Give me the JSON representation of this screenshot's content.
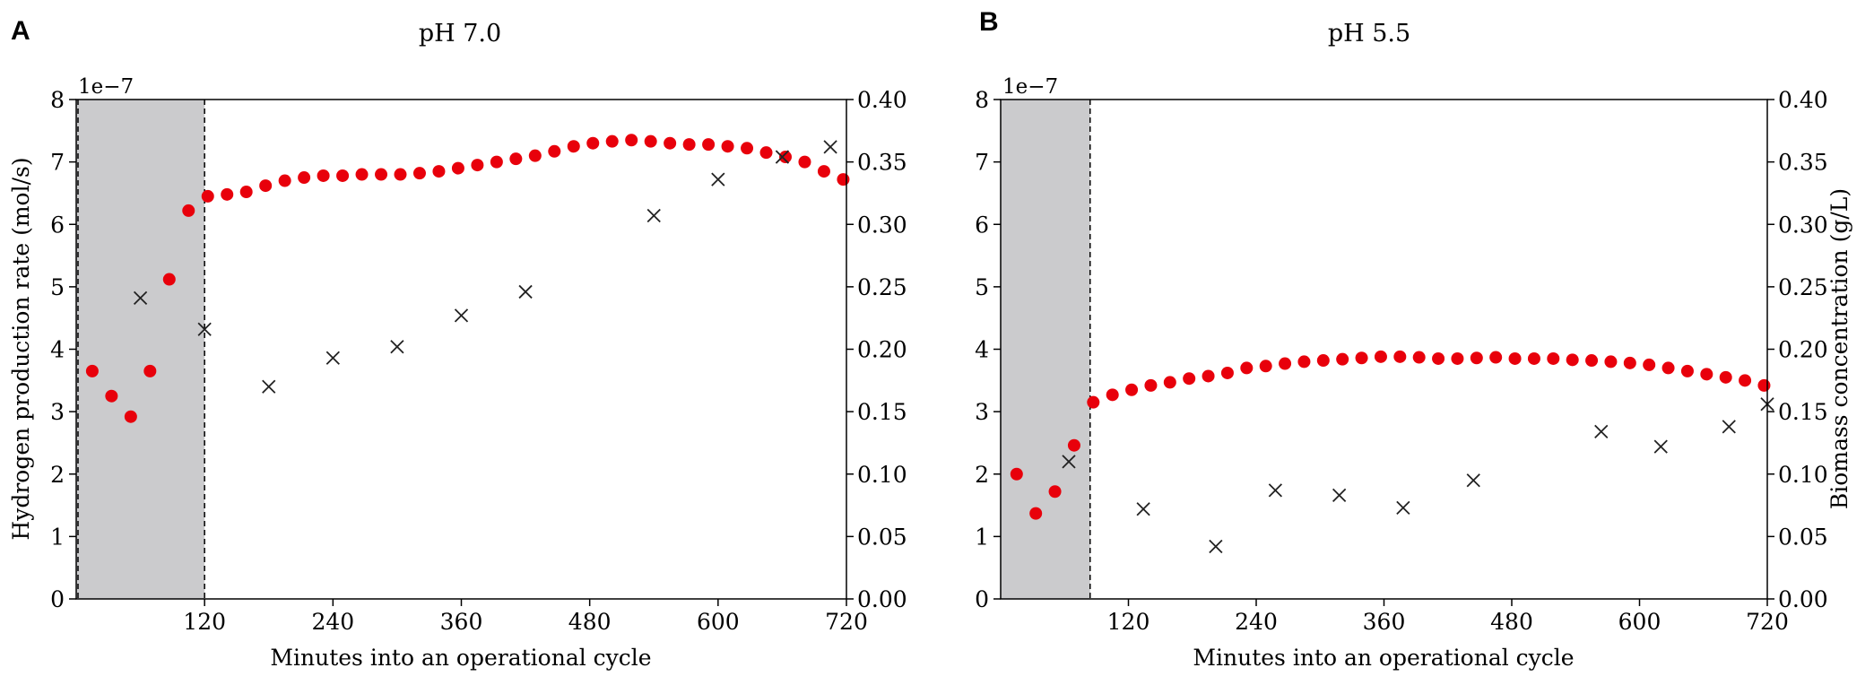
{
  "chart_data": [
    {
      "panel_label": "A",
      "type": "scatter",
      "title": "pH 7.0",
      "xlabel": "Minutes into an operational cycle",
      "ylabel_left": "Hydrogen production rate (mol/s)",
      "ylabel_right": "",
      "y_scale_label": "1e−7",
      "xlim": [
        0,
        720
      ],
      "xticks": [
        120,
        240,
        360,
        480,
        600,
        720
      ],
      "xtick_labels": [
        "120",
        "240",
        "360",
        "480",
        "600",
        "720"
      ],
      "ylim_left": [
        0,
        8
      ],
      "yticks_left": [
        0,
        1,
        2,
        3,
        4,
        5,
        6,
        7,
        8
      ],
      "ytick_labels_left": [
        "0",
        "1",
        "2",
        "3",
        "4",
        "5",
        "6",
        "7",
        "8"
      ],
      "ylim_right": [
        0,
        0.4
      ],
      "yticks_right": [
        0,
        0.05,
        0.1,
        0.15,
        0.2,
        0.25,
        0.3,
        0.35,
        0.4
      ],
      "ytick_labels_right": [
        "0.00",
        "0.05",
        "0.10",
        "0.15",
        "0.20",
        "0.25",
        "0.30",
        "0.35",
        "0.40"
      ],
      "shaded_region": [
        0,
        120
      ],
      "series": [
        {
          "name": "Hydrogen production rate",
          "axis": "left",
          "marker": "circle",
          "color": "#e8000b",
          "x": [
            15,
            33,
            51,
            69,
            87,
            105,
            123,
            141,
            159,
            177,
            195,
            213,
            231,
            249,
            267,
            285,
            303,
            321,
            339,
            357,
            375,
            393,
            411,
            429,
            447,
            465,
            483,
            501,
            519,
            537,
            555,
            573,
            591,
            609,
            627,
            645,
            663,
            681,
            699,
            717
          ],
          "y": [
            3.65,
            3.25,
            2.92,
            3.65,
            5.12,
            6.22,
            6.45,
            6.48,
            6.52,
            6.62,
            6.7,
            6.75,
            6.78,
            6.78,
            6.8,
            6.8,
            6.8,
            6.82,
            6.85,
            6.9,
            6.95,
            7.0,
            7.05,
            7.1,
            7.17,
            7.25,
            7.3,
            7.33,
            7.35,
            7.33,
            7.3,
            7.28,
            7.28,
            7.25,
            7.22,
            7.15,
            7.08,
            7.0,
            6.85,
            6.72
          ]
        },
        {
          "name": "Biomass concentration",
          "axis": "right",
          "marker": "x",
          "color": "#222222",
          "x": [
            60,
            120,
            180,
            240,
            300,
            360,
            420,
            540,
            600,
            660,
            705
          ],
          "y": [
            0.241,
            0.216,
            0.17,
            0.193,
            0.202,
            0.227,
            0.246,
            0.307,
            0.336,
            0.354,
            0.362
          ]
        }
      ]
    },
    {
      "panel_label": "B",
      "type": "scatter",
      "title": "pH 5.5",
      "xlabel": "Minutes into an operational cycle",
      "ylabel_left": "",
      "ylabel_right": "Biomass concentration (g/L)",
      "y_scale_label": "1e−7",
      "xlim": [
        0,
        720
      ],
      "xticks": [
        120,
        240,
        360,
        480,
        600,
        720
      ],
      "xtick_labels": [
        "120",
        "240",
        "360",
        "480",
        "600",
        "720"
      ],
      "ylim_left": [
        0,
        8
      ],
      "yticks_left": [
        0,
        1,
        2,
        3,
        4,
        5,
        6,
        7,
        8
      ],
      "ytick_labels_left": [
        "0",
        "1",
        "2",
        "3",
        "4",
        "5",
        "6",
        "7",
        "8"
      ],
      "ylim_right": [
        0,
        0.4
      ],
      "yticks_right": [
        0,
        0.05,
        0.1,
        0.15,
        0.2,
        0.25,
        0.3,
        0.35,
        0.4
      ],
      "ytick_labels_right": [
        "0.00",
        "0.05",
        "0.10",
        "0.15",
        "0.20",
        "0.25",
        "0.30",
        "0.35",
        "0.40"
      ],
      "shaded_region": [
        0,
        84
      ],
      "series": [
        {
          "name": "Hydrogen production rate",
          "axis": "left",
          "marker": "circle",
          "color": "#e8000b",
          "x": [
            15,
            33,
            51,
            69,
            87,
            105,
            123,
            141,
            159,
            177,
            195,
            213,
            231,
            249,
            267,
            285,
            303,
            321,
            339,
            357,
            375,
            393,
            411,
            429,
            447,
            465,
            483,
            501,
            519,
            537,
            555,
            573,
            591,
            609,
            627,
            645,
            663,
            681,
            699,
            717
          ],
          "y": [
            2.0,
            1.37,
            1.72,
            2.46,
            3.15,
            3.27,
            3.35,
            3.42,
            3.47,
            3.53,
            3.57,
            3.62,
            3.7,
            3.73,
            3.77,
            3.8,
            3.82,
            3.84,
            3.86,
            3.88,
            3.88,
            3.87,
            3.85,
            3.85,
            3.86,
            3.87,
            3.85,
            3.85,
            3.85,
            3.83,
            3.82,
            3.8,
            3.78,
            3.75,
            3.7,
            3.65,
            3.6,
            3.55,
            3.5,
            3.42
          ]
        },
        {
          "name": "Biomass concentration",
          "axis": "right",
          "marker": "x",
          "color": "#222222",
          "x": [
            64,
            134,
            202,
            258,
            318,
            378,
            444,
            564,
            620,
            684,
            720
          ],
          "y": [
            0.11,
            0.072,
            0.042,
            0.087,
            0.083,
            0.073,
            0.095,
            0.134,
            0.122,
            0.138,
            0.156
          ]
        }
      ]
    }
  ]
}
